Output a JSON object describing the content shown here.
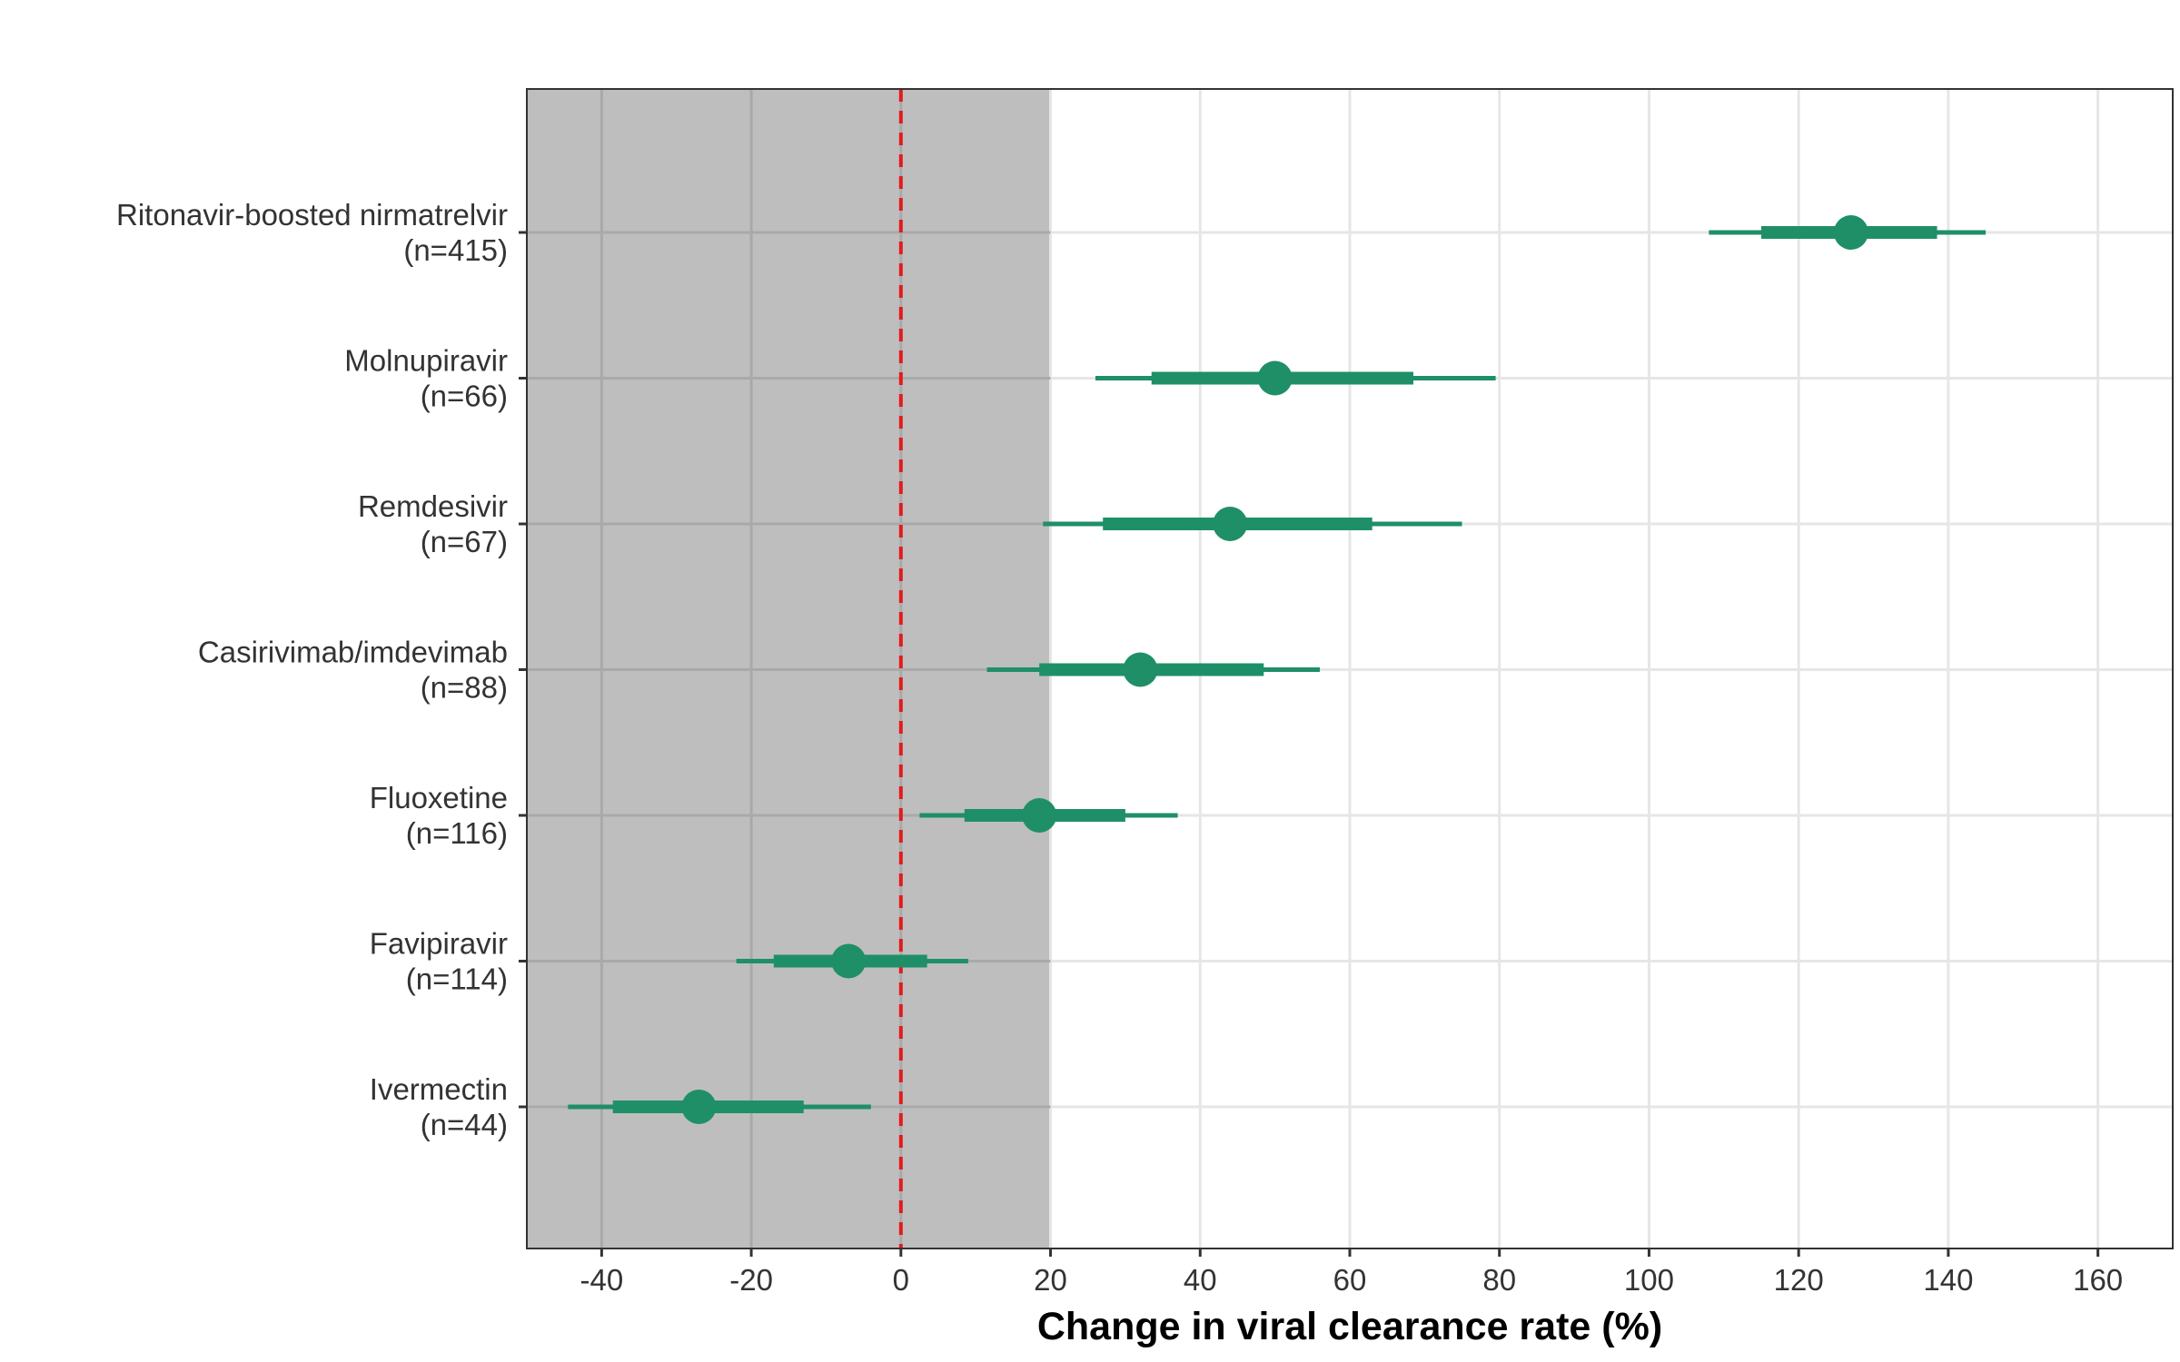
{
  "chart_data": {
    "type": "forest",
    "xlabel": "Change in viral clearance rate (%)",
    "xlim": [
      -50,
      170
    ],
    "xticks": [
      -40,
      -20,
      0,
      20,
      40,
      60,
      80,
      100,
      120,
      140,
      160
    ],
    "xtick_labels": [
      "-40",
      "-20",
      "0",
      "20",
      "40",
      "60",
      "80",
      "100",
      "120",
      "140",
      "160"
    ],
    "reference_line": 0,
    "shaded_region": [
      -50,
      20
    ],
    "grid": true,
    "colors": {
      "point": "#1f8f68",
      "reference_line": "#e31a1c",
      "shaded_region": "#bebebe"
    },
    "series": [
      {
        "name": "Ritonavir-boosted nirmatrelvir",
        "n_label": "(n=415)",
        "estimate": 127,
        "inner_ci": [
          115,
          138.5
        ],
        "outer_ci": [
          108,
          145
        ]
      },
      {
        "name": "Molnupiravir",
        "n_label": "(n=66)",
        "estimate": 50,
        "inner_ci": [
          33.5,
          68.5
        ],
        "outer_ci": [
          26,
          79.5
        ]
      },
      {
        "name": "Remdesivir",
        "n_label": "(n=67)",
        "estimate": 44,
        "inner_ci": [
          27,
          63
        ],
        "outer_ci": [
          19,
          75
        ]
      },
      {
        "name": "Casirivimab/imdevimab",
        "n_label": "(n=88)",
        "estimate": 32,
        "inner_ci": [
          18.5,
          48.5
        ],
        "outer_ci": [
          11.5,
          56
        ]
      },
      {
        "name": "Fluoxetine",
        "n_label": "(n=116)",
        "estimate": 18.5,
        "inner_ci": [
          8.5,
          30
        ],
        "outer_ci": [
          2.5,
          37
        ]
      },
      {
        "name": "Favipiravir",
        "n_label": "(n=114)",
        "estimate": -7,
        "inner_ci": [
          -17,
          3.5
        ],
        "outer_ci": [
          -22,
          9
        ]
      },
      {
        "name": "Ivermectin",
        "n_label": "(n=44)",
        "estimate": -27,
        "inner_ci": [
          -38.5,
          -13
        ],
        "outer_ci": [
          -44.5,
          -4
        ]
      }
    ]
  }
}
